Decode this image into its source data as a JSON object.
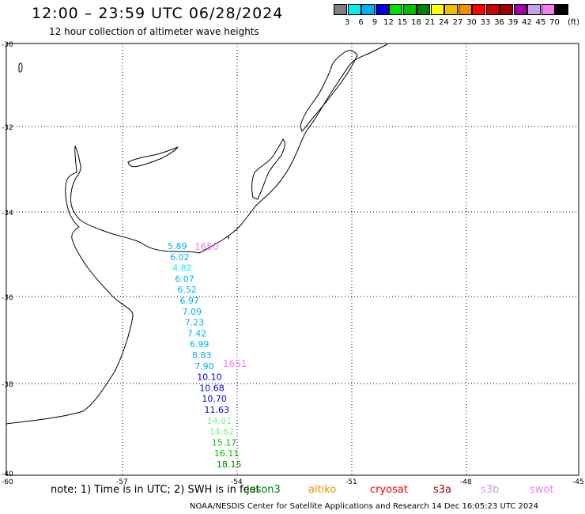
{
  "title": "12:00 – 23:59 UTC 06/28/2024",
  "subtitle": "12 hour collection of altimeter wave heights",
  "legend": {
    "unit": "(ft)",
    "items": [
      {
        "label": "3",
        "color": "#808080"
      },
      {
        "label": "6",
        "color": "#00f0f0"
      },
      {
        "label": "9",
        "color": "#00b0f0"
      },
      {
        "label": "12",
        "color": "#0000e0"
      },
      {
        "label": "15",
        "color": "#00e000"
      },
      {
        "label": "18",
        "color": "#00c000"
      },
      {
        "label": "21",
        "color": "#008000"
      },
      {
        "label": "24",
        "color": "#ffff00"
      },
      {
        "label": "27",
        "color": "#f0c000"
      },
      {
        "label": "30",
        "color": "#f09000"
      },
      {
        "label": "33",
        "color": "#ff0000"
      },
      {
        "label": "36",
        "color": "#d00000"
      },
      {
        "label": "39",
        "color": "#a00000"
      },
      {
        "label": "42",
        "color": "#a000a0"
      },
      {
        "label": "45",
        "color": "#c8a0f0"
      },
      {
        "label": "70",
        "color": "#f080f0"
      },
      {
        "label": "",
        "color": "#000000"
      }
    ]
  },
  "axes": {
    "lon_ticks": [
      "-60",
      "-57",
      "-54",
      "-51",
      "-48",
      "-45"
    ],
    "lat_ticks": [
      "-30",
      "-32",
      "-34",
      "-36",
      "-38",
      "-40"
    ]
  },
  "track_labels": [
    {
      "text": "1650",
      "color": "#f080f0"
    },
    {
      "text": "1651",
      "color": "#f080f0"
    }
  ],
  "wave_heights": [
    {
      "value": "5.89",
      "color": "#00b0f0"
    },
    {
      "value": "6.02",
      "color": "#00b0f0"
    },
    {
      "value": "4.82",
      "color": "#00f0f0"
    },
    {
      "value": "6.07",
      "color": "#00b0f0"
    },
    {
      "value": "6.52",
      "color": "#00b0f0"
    },
    {
      "value": "6.97",
      "color": "#00b0f0"
    },
    {
      "value": "7.09",
      "color": "#00b0f0"
    },
    {
      "value": "7.23",
      "color": "#00b0f0"
    },
    {
      "value": "7.42",
      "color": "#00b0f0"
    },
    {
      "value": "6.99",
      "color": "#00b0f0"
    },
    {
      "value": "8.83",
      "color": "#00b0f0"
    },
    {
      "value": "7.90",
      "color": "#00b0f0"
    },
    {
      "value": "10.10",
      "color": "#0000e0"
    },
    {
      "value": "10.68",
      "color": "#0000e0"
    },
    {
      "value": "10.70",
      "color": "#0000e0"
    },
    {
      "value": "11.63",
      "color": "#0000e0"
    },
    {
      "value": "14.01",
      "color": "#80f080"
    },
    {
      "value": "14.62",
      "color": "#80f080"
    },
    {
      "value": "15.17",
      "color": "#00c000"
    },
    {
      "value": "16.11",
      "color": "#00c000"
    },
    {
      "value": "18.15",
      "color": "#008000"
    }
  ],
  "note": "note:  1) Time is in UTC;  2) SWH is in feet",
  "satellites": [
    {
      "name": "jason3",
      "color": "#008000"
    },
    {
      "name": "altiko",
      "color": "#f09000"
    },
    {
      "name": "cryosat",
      "color": "#ff0000"
    },
    {
      "name": "s3a",
      "color": "#a00000"
    },
    {
      "name": "s3b",
      "color": "#c8a0f0"
    },
    {
      "name": "swot",
      "color": "#f080f0"
    }
  ],
  "credit": "NOAA/NESDIS Center for Satellite Applications and Research    14 Dec 16:05:23 UTC 2024"
}
